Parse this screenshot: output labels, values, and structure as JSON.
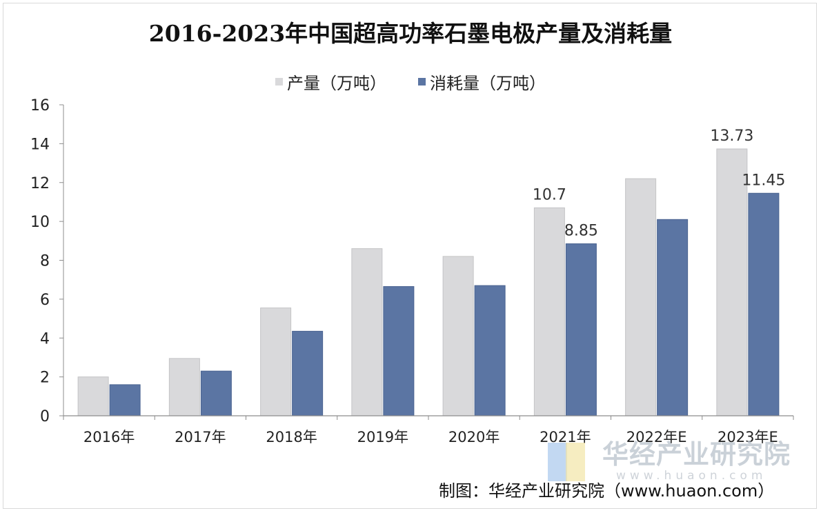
{
  "chart_data": {
    "type": "bar",
    "title": "2016-2023年中国超高功率石墨电极产量及消耗量",
    "categories": [
      "2016年",
      "2017年",
      "2018年",
      "2019年",
      "2020年",
      "2021年",
      "2022年E",
      "2023年E"
    ],
    "series": [
      {
        "name": "产量（万吨）",
        "color": "#d9d9db",
        "values": [
          2.0,
          2.95,
          5.55,
          8.6,
          8.2,
          10.7,
          12.2,
          13.73
        ],
        "labels": [
          "",
          "",
          "",
          "",
          "",
          "10.7",
          "",
          "13.73"
        ]
      },
      {
        "name": "消耗量（万吨）",
        "color": "#5b75a3",
        "values": [
          1.6,
          2.3,
          4.35,
          6.65,
          6.7,
          8.85,
          10.1,
          11.45
        ],
        "labels": [
          "",
          "",
          "",
          "",
          "",
          "8.85",
          "",
          "11.45"
        ]
      }
    ],
    "yaxis": {
      "min": 0,
      "max": 16,
      "ticks": [
        "0",
        "2",
        "4",
        "6",
        "8",
        "10",
        "12",
        "14",
        "16"
      ]
    },
    "legend_position": "top",
    "grid": false
  },
  "watermark": {
    "name": "华经产业研究院",
    "url": "www.huaon.com"
  },
  "source": "制图：华经产业研究院（www.huaon.com）"
}
